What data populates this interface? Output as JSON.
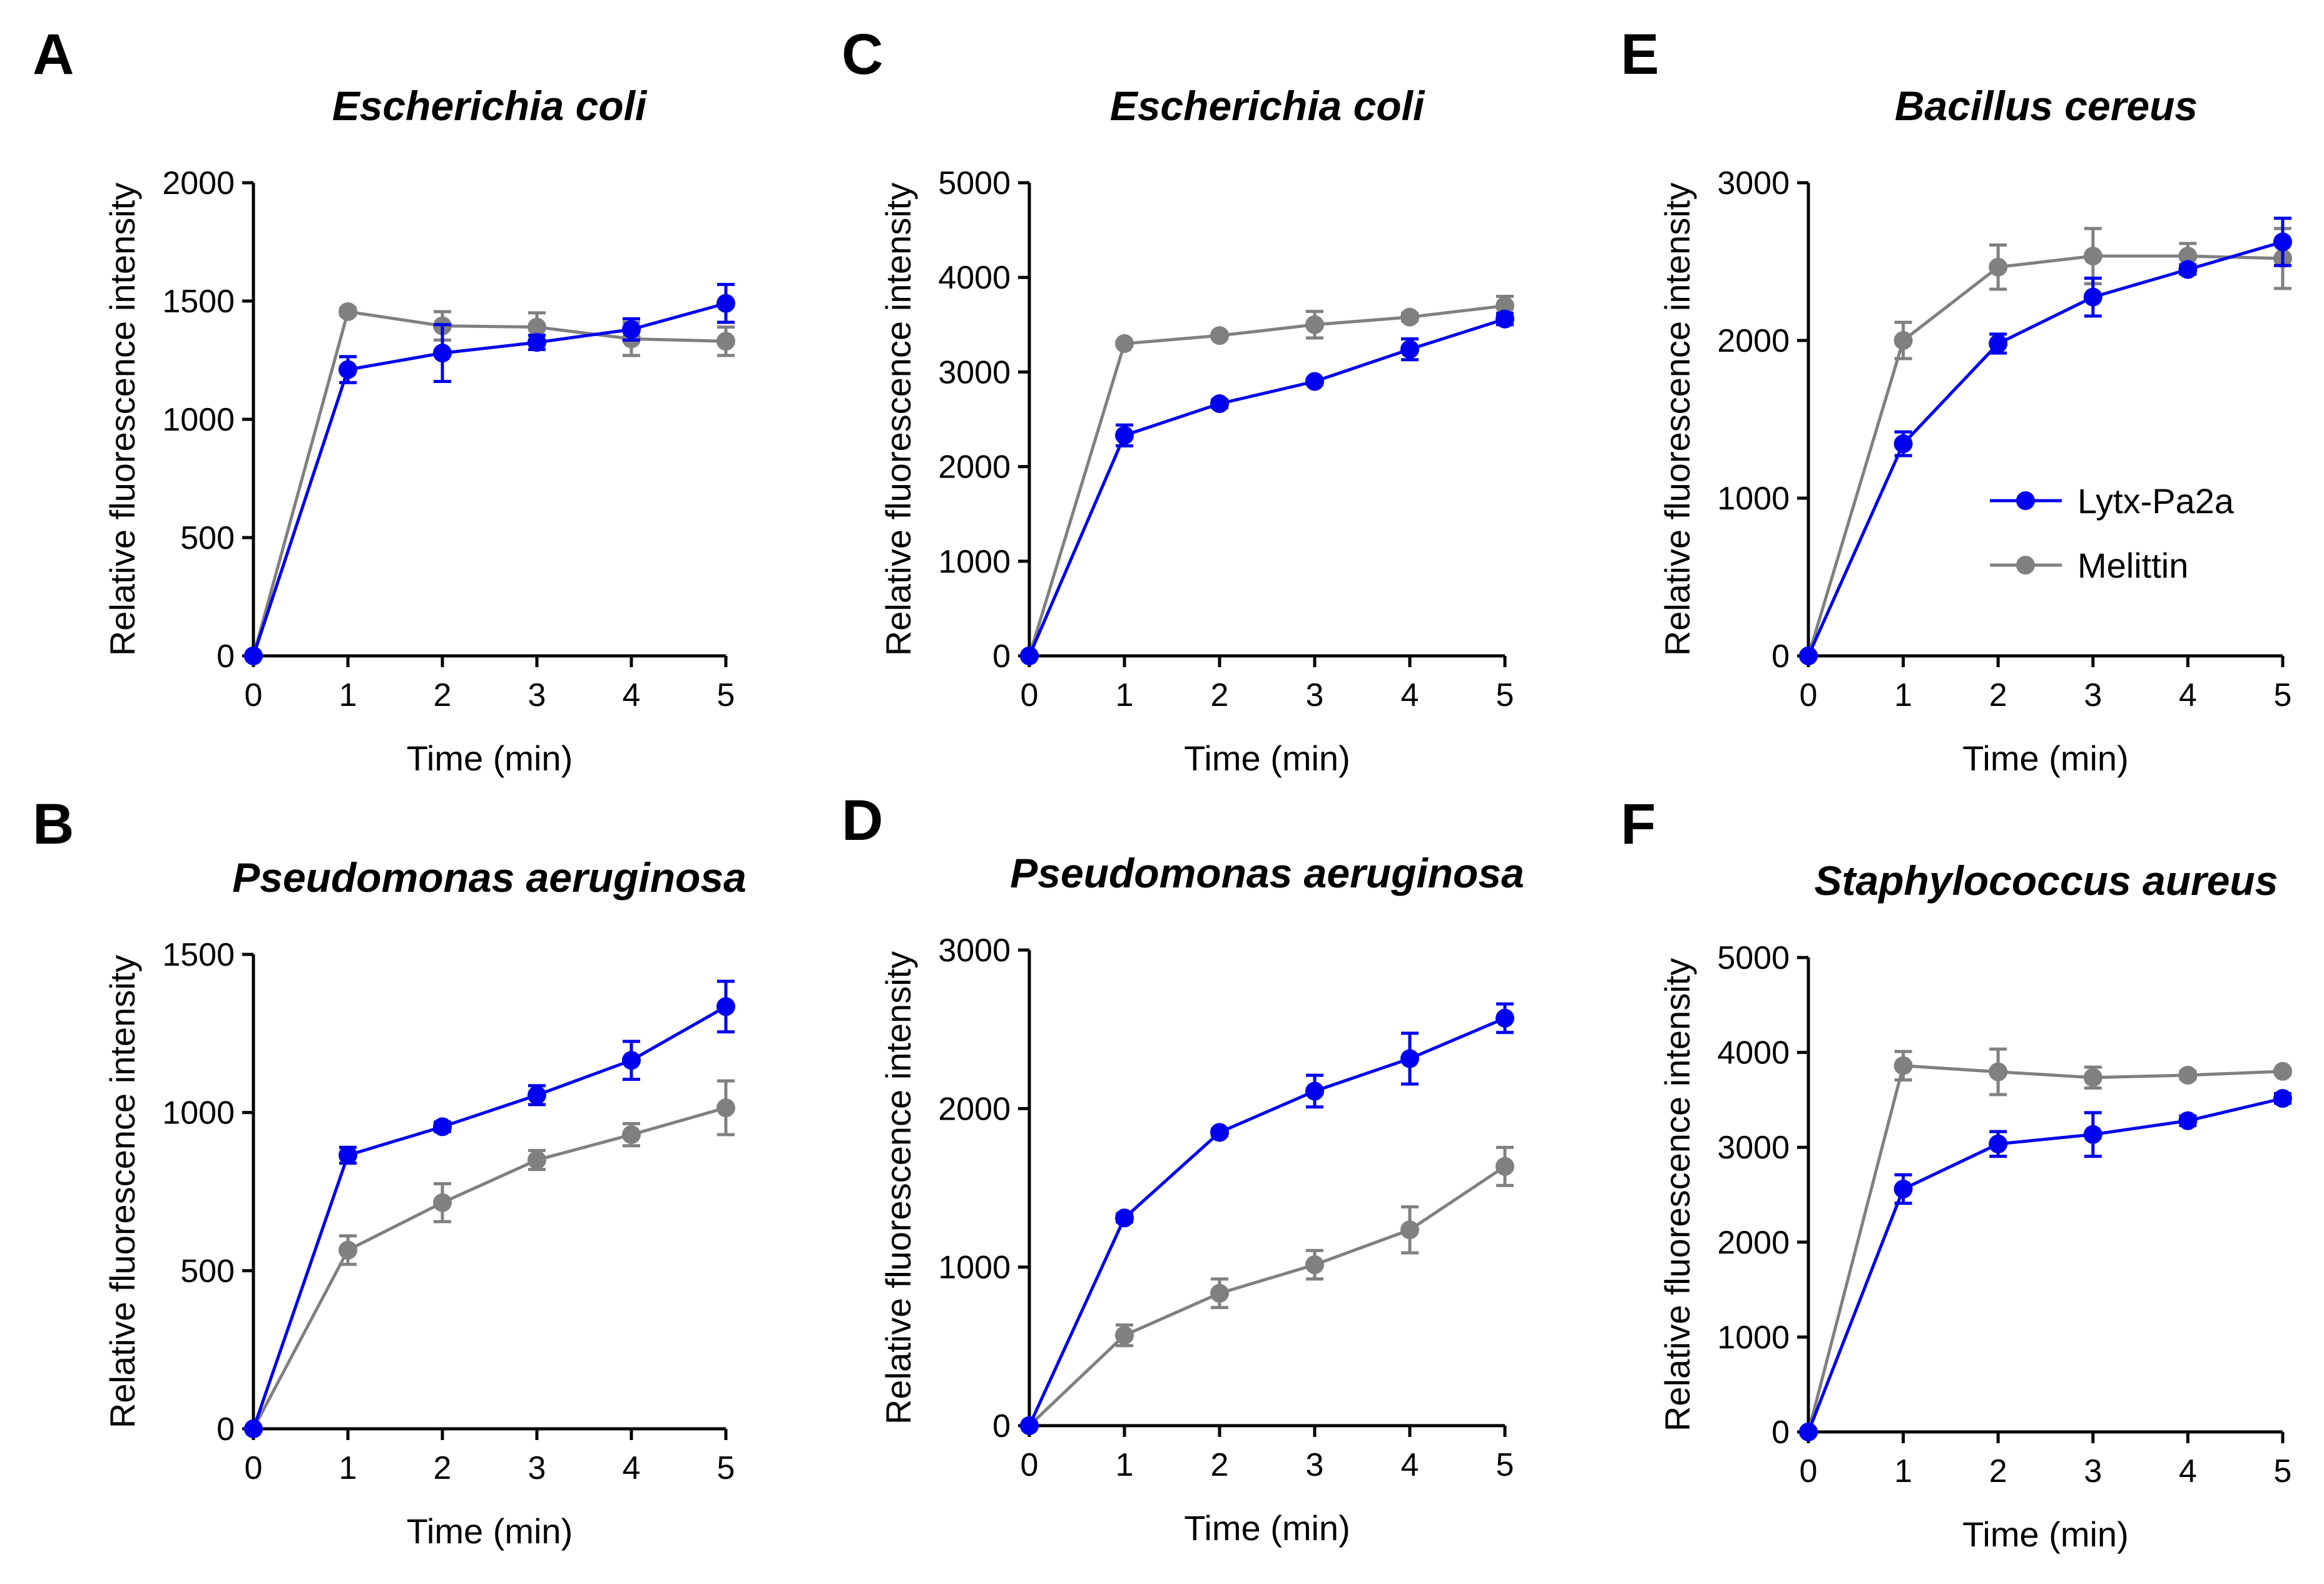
{
  "figure": {
    "legend": {
      "entries": [
        {
          "label": "Lytx-Pa2a",
          "color": "#0000ee"
        },
        {
          "label": "Melittin",
          "color": "#808080"
        }
      ]
    }
  },
  "chart_data": [
    {
      "panel": "A",
      "type": "line",
      "title": "Escherichia coli",
      "xlabel": "Time (min)",
      "ylabel": "Relative fluorescence intensity",
      "x": [
        0,
        1,
        2,
        3,
        4,
        5
      ],
      "xlim": [
        0,
        5
      ],
      "ylim": [
        0,
        2000
      ],
      "yticks": [
        0,
        500,
        1000,
        1500,
        2000
      ],
      "series": [
        {
          "name": "Lytx-Pa2a",
          "color": "#0000ee",
          "values": [
            0,
            1210,
            1280,
            1325,
            1380,
            1490
          ],
          "errors": [
            0,
            55,
            120,
            30,
            45,
            80
          ]
        },
        {
          "name": "Melittin",
          "color": "#808080",
          "values": [
            0,
            1455,
            1395,
            1390,
            1340,
            1330
          ],
          "errors": [
            0,
            15,
            60,
            60,
            70,
            60
          ]
        }
      ]
    },
    {
      "panel": "B",
      "type": "line",
      "title": "Pseudomonas aeruginosa",
      "xlabel": "Time (min)",
      "ylabel": "Relative fluorescence intensity",
      "x": [
        0,
        1,
        2,
        3,
        4,
        5
      ],
      "xlim": [
        0,
        5
      ],
      "ylim": [
        0,
        1500
      ],
      "yticks": [
        0,
        500,
        1000,
        1500
      ],
      "series": [
        {
          "name": "Lytx-Pa2a",
          "color": "#0000ee",
          "values": [
            0,
            865,
            955,
            1055,
            1165,
            1335
          ],
          "errors": [
            0,
            25,
            15,
            30,
            60,
            80
          ]
        },
        {
          "name": "Melittin",
          "color": "#808080",
          "values": [
            0,
            565,
            715,
            850,
            930,
            1015
          ],
          "errors": [
            0,
            45,
            60,
            30,
            35,
            85
          ]
        }
      ]
    },
    {
      "panel": "C",
      "type": "line",
      "title": "Escherichia coli",
      "xlabel": "Time (min)",
      "ylabel": "Relative fluorescence intensity",
      "x": [
        0,
        1,
        2,
        3,
        4,
        5
      ],
      "xlim": [
        0,
        5
      ],
      "ylim": [
        0,
        5000
      ],
      "yticks": [
        0,
        1000,
        2000,
        3000,
        4000,
        5000
      ],
      "series": [
        {
          "name": "Lytx-Pa2a",
          "color": "#0000ee",
          "values": [
            0,
            2330,
            2665,
            2900,
            3240,
            3560
          ],
          "errors": [
            0,
            110,
            40,
            30,
            110,
            60
          ]
        },
        {
          "name": "Melittin",
          "color": "#808080",
          "values": [
            0,
            3300,
            3385,
            3500,
            3580,
            3700
          ],
          "errors": [
            0,
            25,
            30,
            140,
            40,
            100
          ]
        }
      ]
    },
    {
      "panel": "D",
      "type": "line",
      "title": "Pseudomonas aeruginosa",
      "xlabel": "Time (min)",
      "ylabel": "Relative fluorescence intensity",
      "x": [
        0,
        1,
        2,
        3,
        4,
        5
      ],
      "xlim": [
        0,
        5
      ],
      "ylim": [
        0,
        3000
      ],
      "yticks": [
        0,
        1000,
        2000,
        3000
      ],
      "series": [
        {
          "name": "Lytx-Pa2a",
          "color": "#0000ee",
          "values": [
            0,
            1310,
            1850,
            2110,
            2315,
            2570
          ],
          "errors": [
            0,
            25,
            20,
            100,
            160,
            90
          ]
        },
        {
          "name": "Melittin",
          "color": "#808080",
          "values": [
            0,
            570,
            835,
            1015,
            1235,
            1635
          ],
          "errors": [
            0,
            65,
            90,
            90,
            145,
            120
          ]
        }
      ]
    },
    {
      "panel": "E",
      "type": "line",
      "title": "Bacillus cereus",
      "xlabel": "Time (min)",
      "ylabel": "Relative fluorescence intensity",
      "x": [
        0,
        1,
        2,
        3,
        4,
        5
      ],
      "xlim": [
        0,
        5
      ],
      "ylim": [
        0,
        3000
      ],
      "yticks": [
        0,
        1000,
        2000,
        3000
      ],
      "series": [
        {
          "name": "Lytx-Pa2a",
          "color": "#0000ee",
          "values": [
            0,
            1345,
            1980,
            2275,
            2450,
            2625
          ],
          "errors": [
            0,
            75,
            60,
            120,
            30,
            150
          ]
        },
        {
          "name": "Melittin",
          "color": "#808080",
          "values": [
            0,
            2000,
            2465,
            2535,
            2535,
            2520
          ],
          "errors": [
            0,
            115,
            140,
            175,
            80,
            190
          ]
        }
      ]
    },
    {
      "panel": "F",
      "type": "line",
      "title": "Staphylococcus aureus",
      "xlabel": "Time (min)",
      "ylabel": "Relative fluorescence intensity",
      "x": [
        0,
        1,
        2,
        3,
        4,
        5
      ],
      "xlim": [
        0,
        5
      ],
      "ylim": [
        0,
        5000
      ],
      "yticks": [
        0,
        1000,
        2000,
        3000,
        4000,
        5000
      ],
      "series": [
        {
          "name": "Lytx-Pa2a",
          "color": "#0000ee",
          "values": [
            0,
            2560,
            3035,
            3135,
            3280,
            3515
          ],
          "errors": [
            0,
            150,
            130,
            230,
            50,
            50
          ]
        },
        {
          "name": "Melittin",
          "color": "#808080",
          "values": [
            0,
            3860,
            3795,
            3735,
            3760,
            3800
          ],
          "errors": [
            0,
            150,
            240,
            110,
            40,
            30
          ]
        }
      ]
    }
  ]
}
